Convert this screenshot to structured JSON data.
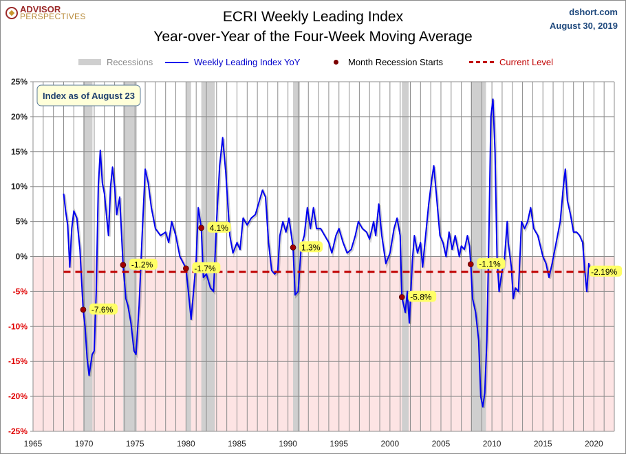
{
  "header": {
    "logo": "ADVISOR PERSPECTIVES",
    "title_line1": "ECRI Weekly Leading Index",
    "title_line2": "Year-over-Year of the Four-Week Moving Average",
    "source": "dshort.com",
    "date": "August 30, 2019"
  },
  "legend": {
    "recessions": "Recessions",
    "series": "Weekly Leading Index YoY",
    "dots": "Month Recession Starts",
    "current": "Current Level"
  },
  "colors": {
    "series": "#0000ee",
    "recession": "#cfcfcf",
    "dot": "#a00000",
    "current": "#c00000",
    "negative_bg": "#fde4e4",
    "label_bg": "#ffff66"
  },
  "chart_data": {
    "type": "line",
    "title": "ECRI Weekly Leading Index Year-over-Year of the Four-Week Moving Average",
    "annotation": "Index as of August 23",
    "xlim": [
      1965,
      2022
    ],
    "ylim": [
      -25,
      25
    ],
    "x_ticks": [
      "1965",
      "1970",
      "1975",
      "1980",
      "1985",
      "1990",
      "1995",
      "2000",
      "2005",
      "2010",
      "2015",
      "2020"
    ],
    "y_ticks": [
      "25%",
      "20%",
      "15%",
      "10%",
      "5%",
      "0%",
      "-5%",
      "-10%",
      "-15%",
      "-20%",
      "-25%"
    ],
    "grid": true,
    "legend_position": "top",
    "current_level": -2.19,
    "current_label": "-2.19%",
    "recessions": [
      [
        1969.92,
        1970.83
      ],
      [
        1973.83,
        1975.17
      ],
      [
        1980.0,
        1980.5
      ],
      [
        1981.5,
        1982.83
      ],
      [
        1990.5,
        1991.17
      ],
      [
        2001.17,
        2001.83
      ],
      [
        2007.92,
        2009.42
      ]
    ],
    "recession_starts": [
      {
        "x": 1969.92,
        "y": -7.6,
        "label": "-7.6%"
      },
      {
        "x": 1973.83,
        "y": -1.2,
        "label": "-1.2%"
      },
      {
        "x": 1980.0,
        "y": -1.7,
        "label": "-1.7%"
      },
      {
        "x": 1981.5,
        "y": 4.1,
        "label": "4.1%"
      },
      {
        "x": 1990.5,
        "y": 1.3,
        "label": "1.3%"
      },
      {
        "x": 2001.17,
        "y": -5.8,
        "label": "-5.8%"
      },
      {
        "x": 2007.92,
        "y": -1.1,
        "label": "-1.1%"
      }
    ],
    "series": [
      {
        "name": "Weekly Leading Index YoY",
        "x": [
          1968.0,
          1968.2,
          1968.4,
          1968.6,
          1968.8,
          1969.0,
          1969.3,
          1969.6,
          1969.92,
          1970.1,
          1970.3,
          1970.5,
          1970.8,
          1971.0,
          1971.2,
          1971.4,
          1971.6,
          1971.8,
          1972.0,
          1972.2,
          1972.4,
          1972.6,
          1972.8,
          1973.0,
          1973.2,
          1973.5,
          1973.83,
          1974.1,
          1974.3,
          1974.6,
          1974.9,
          1975.1,
          1975.4,
          1975.7,
          1976.0,
          1976.3,
          1976.6,
          1977.0,
          1977.5,
          1978.0,
          1978.3,
          1978.6,
          1979.0,
          1979.4,
          1980.0,
          1980.3,
          1980.5,
          1980.8,
          1981.0,
          1981.2,
          1981.5,
          1981.7,
          1982.0,
          1982.4,
          1982.7,
          1983.0,
          1983.3,
          1983.6,
          1983.9,
          1984.3,
          1984.6,
          1985.0,
          1985.3,
          1985.6,
          1986.0,
          1986.4,
          1986.8,
          1987.2,
          1987.5,
          1987.8,
          1988.1,
          1988.4,
          1988.7,
          1989.0,
          1989.2,
          1989.5,
          1989.8,
          1990.1,
          1990.5,
          1990.7,
          1991.0,
          1991.3,
          1991.6,
          1991.9,
          1992.2,
          1992.5,
          1992.8,
          1993.2,
          1993.6,
          1994.0,
          1994.3,
          1994.7,
          1995.0,
          1995.4,
          1995.8,
          1996.2,
          1996.6,
          1996.9,
          1997.3,
          1997.7,
          1998.0,
          1998.4,
          1998.6,
          1998.9,
          1999.2,
          1999.6,
          2000.0,
          2000.4,
          2000.7,
          2001.0,
          2001.17,
          2001.5,
          2001.7,
          2001.9,
          2002.2,
          2002.4,
          2002.7,
          2003.0,
          2003.2,
          2003.5,
          2003.8,
          2004.1,
          2004.3,
          2004.6,
          2004.9,
          2005.2,
          2005.5,
          2005.8,
          2006.1,
          2006.4,
          2006.8,
          2007.0,
          2007.3,
          2007.6,
          2007.8,
          2007.92,
          2008.1,
          2008.4,
          2008.7,
          2008.9,
          2009.1,
          2009.3,
          2009.5,
          2009.7,
          2009.9,
          2010.1,
          2010.3,
          2010.5,
          2010.7,
          2011.0,
          2011.2,
          2011.5,
          2011.6,
          2011.9,
          2012.1,
          2012.3,
          2012.6,
          2012.9,
          2013.2,
          2013.5,
          2013.8,
          2014.1,
          2014.5,
          2015.0,
          2015.3,
          2015.6,
          2015.9,
          2016.3,
          2016.7,
          2017.0,
          2017.2,
          2017.4,
          2017.7,
          2018.0,
          2018.3,
          2018.6,
          2018.9,
          2019.1,
          2019.3,
          2019.5,
          2019.65
        ],
        "y": [
          9,
          6.5,
          4.5,
          -1.5,
          4,
          6.5,
          5.5,
          1,
          -7.6,
          -10,
          -14.5,
          -17,
          -14,
          -13.5,
          -5,
          10,
          15.2,
          10.5,
          9,
          6,
          3,
          10,
          12.8,
          10,
          6,
          8.5,
          -1.2,
          -6,
          -7,
          -9.5,
          -13.5,
          -14,
          -7,
          3,
          12.5,
          10.5,
          7,
          4,
          3,
          3.5,
          2,
          5,
          3,
          0,
          -1.7,
          -6,
          -9,
          -4,
          -0.5,
          7,
          4.1,
          -3,
          -2.5,
          -4.5,
          -5,
          5,
          13,
          17,
          12,
          3,
          0.5,
          2,
          1,
          5.5,
          4.5,
          5.5,
          6,
          8,
          9.5,
          8.5,
          2,
          -2,
          -2.5,
          -2,
          3,
          5,
          3.5,
          5.5,
          1.3,
          -5.5,
          -5,
          1.5,
          3,
          7,
          4,
          7,
          4,
          4,
          3,
          2,
          0.5,
          3,
          4,
          2,
          0.5,
          1,
          3,
          5,
          4,
          3.5,
          2.5,
          5,
          3,
          7.5,
          3,
          -1,
          0.5,
          4,
          5.5,
          3,
          -5.8,
          -8,
          -5,
          -9.5,
          -0.5,
          3,
          0.5,
          2,
          -1.5,
          3,
          7.5,
          11,
          13,
          8,
          3,
          2,
          0,
          3.5,
          1,
          3,
          0,
          1.5,
          1,
          3,
          1.5,
          -1.1,
          -6,
          -8,
          -12,
          -20,
          -21.5,
          -19.5,
          -12,
          3,
          20,
          22.5,
          15,
          0,
          -5,
          -2,
          -1,
          5,
          2,
          -1.5,
          -6,
          -4.5,
          -5,
          5,
          4,
          5,
          7,
          4,
          3,
          0,
          -1,
          -3,
          -1,
          2,
          5,
          10,
          12.5,
          8,
          6,
          3.5,
          3.5,
          3,
          2,
          -2,
          -5,
          -1,
          -2.19
        ]
      }
    ]
  }
}
